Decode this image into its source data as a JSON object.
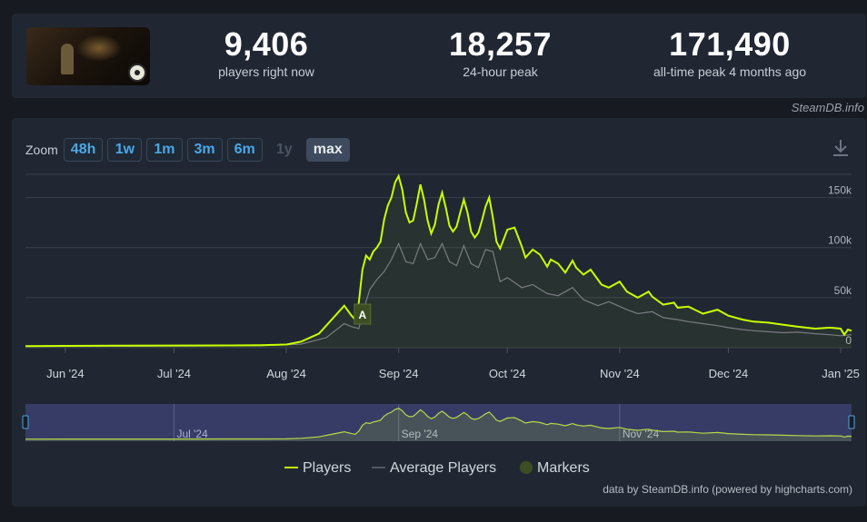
{
  "stats": [
    {
      "value": "9,406",
      "label": "players right now"
    },
    {
      "value": "18,257",
      "label": "24-hour peak"
    },
    {
      "value": "171,490",
      "label": "all-time peak 4 months ago"
    }
  ],
  "watermark": "SteamDB.info",
  "zoom": {
    "label": "Zoom",
    "buttons": [
      "48h",
      "1w",
      "1m",
      "3m",
      "6m",
      "1y",
      "max"
    ],
    "disabled": "1y",
    "active": "max"
  },
  "icons": {
    "download": "download-icon",
    "thumbnail": "game-thumbnail"
  },
  "colors": {
    "players": "#c8ff00",
    "average": "#787c82",
    "marker": "#3d4f22",
    "navigator_bg": "#3b4170"
  },
  "chart_data": {
    "type": "line",
    "x_labels": [
      "Jun '24",
      "Jul '24",
      "Aug '24",
      "Sep '24",
      "Oct '24",
      "Nov '24",
      "Dec '24",
      "Jan '25"
    ],
    "y_labels": [
      "0",
      "50k",
      "100k",
      "150k"
    ],
    "ylim": [
      0,
      175000
    ],
    "grid": true,
    "legend_position": "bottom",
    "series": [
      {
        "name": "Players",
        "x": [
          "2024-05-21",
          "2024-06-01",
          "2024-06-15",
          "2024-07-01",
          "2024-07-15",
          "2024-07-25",
          "2024-08-01",
          "2024-08-05",
          "2024-08-10",
          "2024-08-14",
          "2024-08-17",
          "2024-08-19",
          "2024-08-20",
          "2024-08-21",
          "2024-08-22",
          "2024-08-23",
          "2024-08-24",
          "2024-08-25",
          "2024-08-26",
          "2024-08-27",
          "2024-08-28",
          "2024-08-29",
          "2024-08-30",
          "2024-08-31",
          "2024-09-01",
          "2024-09-02",
          "2024-09-03",
          "2024-09-04",
          "2024-09-05",
          "2024-09-06",
          "2024-09-07",
          "2024-09-08",
          "2024-09-09",
          "2024-09-10",
          "2024-09-11",
          "2024-09-12",
          "2024-09-13",
          "2024-09-14",
          "2024-09-15",
          "2024-09-16",
          "2024-09-17",
          "2024-09-18",
          "2024-09-19",
          "2024-09-20",
          "2024-09-21",
          "2024-09-22",
          "2024-09-23",
          "2024-09-24",
          "2024-09-25",
          "2024-09-26",
          "2024-09-27",
          "2024-09-28",
          "2024-09-29",
          "2024-10-01",
          "2024-10-03",
          "2024-10-05",
          "2024-10-06",
          "2024-10-08",
          "2024-10-10",
          "2024-10-12",
          "2024-10-13",
          "2024-10-15",
          "2024-10-17",
          "2024-10-19",
          "2024-10-20",
          "2024-10-22",
          "2024-10-24",
          "2024-10-26",
          "2024-10-27",
          "2024-10-29",
          "2024-11-01",
          "2024-11-03",
          "2024-11-06",
          "2024-11-09",
          "2024-11-10",
          "2024-11-13",
          "2024-11-16",
          "2024-11-17",
          "2024-11-20",
          "2024-11-24",
          "2024-11-28",
          "2024-12-01",
          "2024-12-05",
          "2024-12-08",
          "2024-12-12",
          "2024-12-16",
          "2024-12-20",
          "2024-12-25",
          "2024-12-29",
          "2025-01-01",
          "2025-01-02",
          "2025-01-03",
          "2025-01-04"
        ],
        "y": [
          1500,
          1800,
          2000,
          2200,
          2300,
          2500,
          3200,
          6000,
          14000,
          30000,
          42000,
          32000,
          28000,
          45000,
          78000,
          92000,
          88000,
          96000,
          100000,
          106000,
          128000,
          142000,
          150000,
          165000,
          171490,
          158000,
          135000,
          125000,
          127000,
          144000,
          163000,
          148000,
          127000,
          114000,
          123000,
          143000,
          155000,
          140000,
          122000,
          116000,
          121000,
          135000,
          148000,
          135000,
          116000,
          110000,
          115000,
          127000,
          141000,
          150000,
          130000,
          106000,
          99000,
          118000,
          120000,
          101000,
          90000,
          98000,
          93000,
          81000,
          88000,
          84000,
          75000,
          87000,
          80000,
          73000,
          78000,
          68000,
          63000,
          60000,
          66000,
          56000,
          50000,
          56000,
          51000,
          43000,
          45000,
          40000,
          41000,
          34000,
          38000,
          32000,
          28000,
          26000,
          25000,
          23000,
          21000,
          19000,
          20000,
          19000,
          13000,
          18000,
          17000
        ]
      },
      {
        "name": "Average Players",
        "x": [
          "2024-05-21",
          "2024-07-01",
          "2024-07-25",
          "2024-08-05",
          "2024-08-12",
          "2024-08-17",
          "2024-08-19",
          "2024-08-21",
          "2024-08-22",
          "2024-08-24",
          "2024-08-26",
          "2024-08-28",
          "2024-08-30",
          "2024-09-01",
          "2024-09-03",
          "2024-09-05",
          "2024-09-07",
          "2024-09-09",
          "2024-09-11",
          "2024-09-13",
          "2024-09-15",
          "2024-09-17",
          "2024-09-19",
          "2024-09-21",
          "2024-09-23",
          "2024-09-25",
          "2024-09-27",
          "2024-09-29",
          "2024-10-01",
          "2024-10-05",
          "2024-10-08",
          "2024-10-12",
          "2024-10-15",
          "2024-10-19",
          "2024-10-22",
          "2024-10-26",
          "2024-10-29",
          "2024-11-03",
          "2024-11-06",
          "2024-11-10",
          "2024-11-13",
          "2024-11-17",
          "2024-11-20",
          "2024-11-24",
          "2024-11-28",
          "2024-12-01",
          "2024-12-05",
          "2024-12-08",
          "2024-12-12",
          "2024-12-16",
          "2024-12-20",
          "2024-12-25",
          "2024-12-29",
          "2025-01-01",
          "2025-01-04"
        ],
        "y": [
          1200,
          1600,
          2000,
          3500,
          10000,
          24000,
          21000,
          19000,
          34000,
          58000,
          68000,
          76000,
          88000,
          104000,
          86000,
          84000,
          104000,
          88000,
          90000,
          104000,
          86000,
          82000,
          102000,
          84000,
          80000,
          98000,
          96000,
          66000,
          70000,
          60000,
          63000,
          54000,
          52000,
          60000,
          48000,
          42000,
          46000,
          38000,
          34000,
          36000,
          30000,
          28000,
          26000,
          24000,
          22000,
          20000,
          18000,
          17000,
          16000,
          15000,
          15500,
          14000,
          13000,
          12000,
          13000
        ]
      }
    ],
    "markers": [
      {
        "label": "A",
        "x": "2024-08-22"
      }
    ],
    "navigator": {
      "labels": [
        "Jul '24",
        "Sep '24",
        "Nov '24"
      ]
    },
    "legend": [
      {
        "label": "Players"
      },
      {
        "label": "Average Players"
      },
      {
        "label": "Markers"
      }
    ],
    "credit": "data by SteamDB.info (powered by highcharts.com)"
  }
}
